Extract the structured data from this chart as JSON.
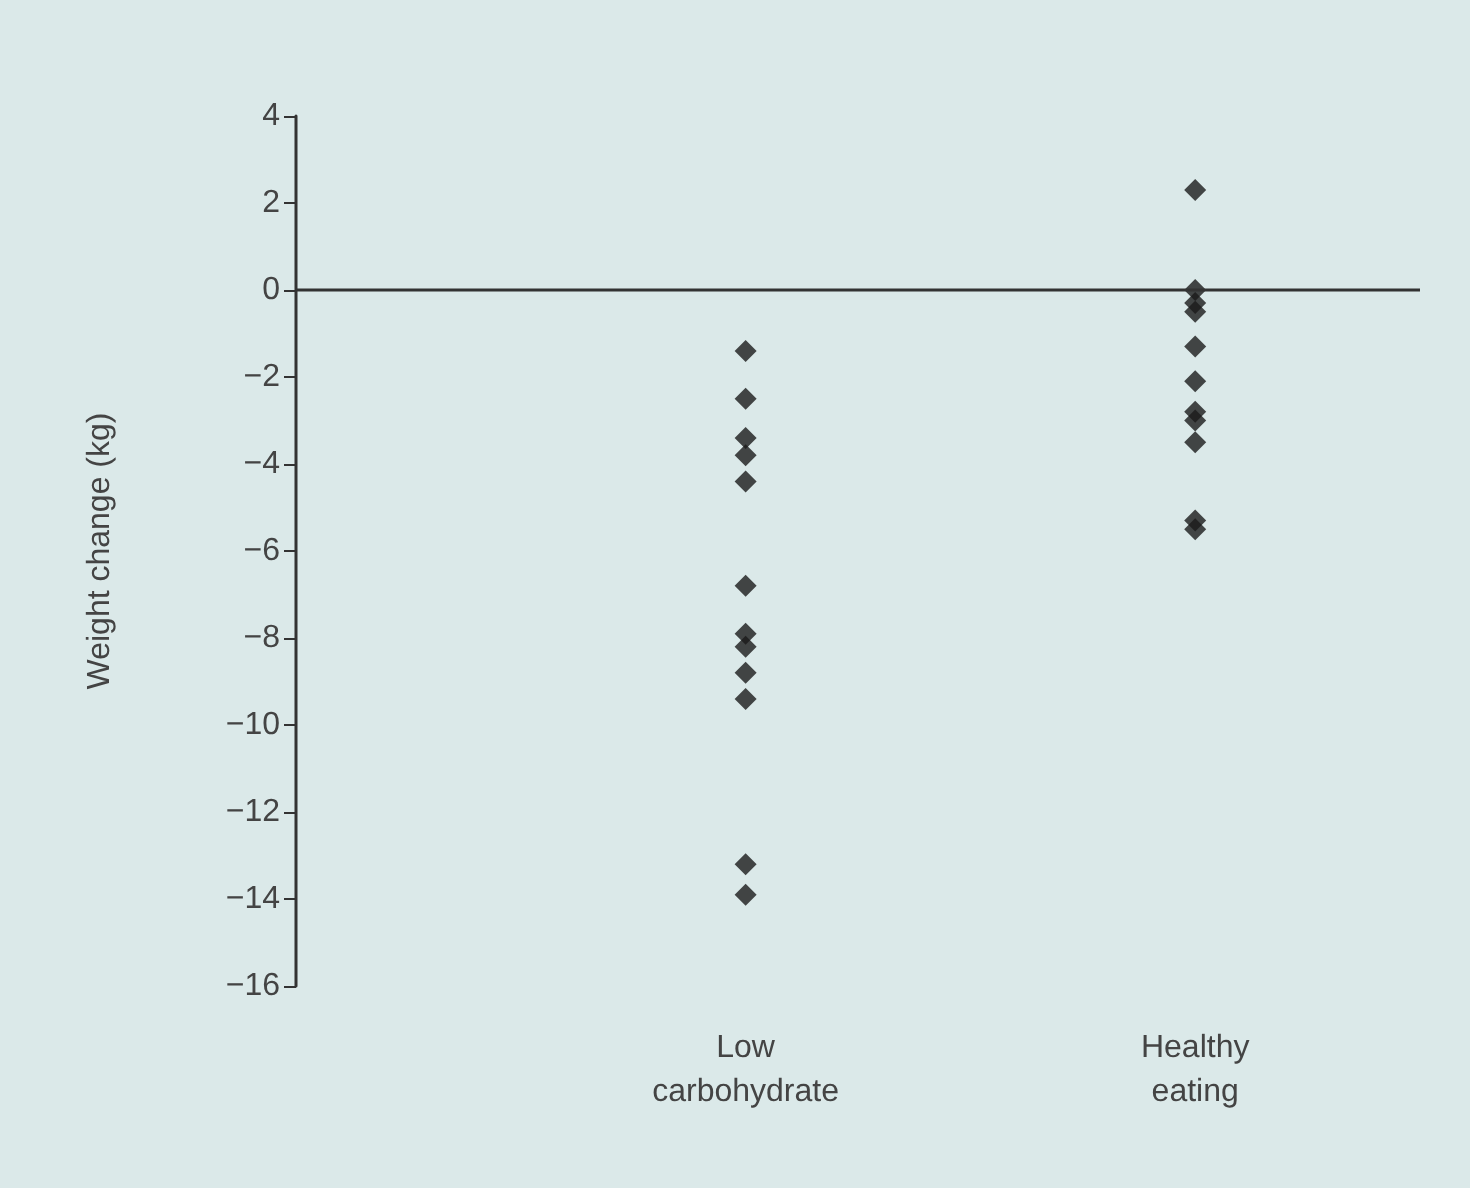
{
  "chart_data": {
    "type": "scatter",
    "ylabel": "Weight change (kg)",
    "categories": [
      "Low\ncarbohydrate",
      "Healthy\neating"
    ],
    "series": [
      {
        "color": "#1a1a1a",
        "x": [
          "Low\ncarbohydrate",
          "Low\ncarbohydrate",
          "Low\ncarbohydrate",
          "Low\ncarbohydrate",
          "Low\ncarbohydrate",
          "Low\ncarbohydrate",
          "Low\ncarbohydrate",
          "Low\ncarbohydrate",
          "Low\ncarbohydrate",
          "Low\ncarbohydrate",
          "Low\ncarbohydrate",
          "Low\ncarbohydrate"
        ],
        "values": [
          -1.4,
          -2.5,
          -3.4,
          -3.8,
          -4.4,
          -6.8,
          -7.9,
          -8.2,
          -8.8,
          -9.4,
          -13.2,
          -13.9
        ]
      },
      {
        "color": "#1a1a1a",
        "x": [
          "Healthy\neating",
          "Healthy\neating",
          "Healthy\neating",
          "Healthy\neating",
          "Healthy\neating",
          "Healthy\neating",
          "Healthy\neating",
          "Healthy\neating",
          "Healthy\neating",
          "Healthy\neating",
          "Healthy\neating"
        ],
        "values": [
          2.3,
          0,
          -0.3,
          -0.5,
          -1.3,
          -2.1,
          -2.8,
          -3.0,
          -3.5,
          -5.3,
          -5.5
        ]
      }
    ],
    "ylim": [
      -16,
      4
    ],
    "yticks": [
      -16,
      -14,
      -12,
      -10,
      -8,
      -6,
      -4,
      -2,
      0,
      2,
      4
    ],
    "ref_lines": [
      {
        "axis": "y",
        "value": 0,
        "color": "#333333"
      }
    ],
    "marker": "diamond"
  }
}
